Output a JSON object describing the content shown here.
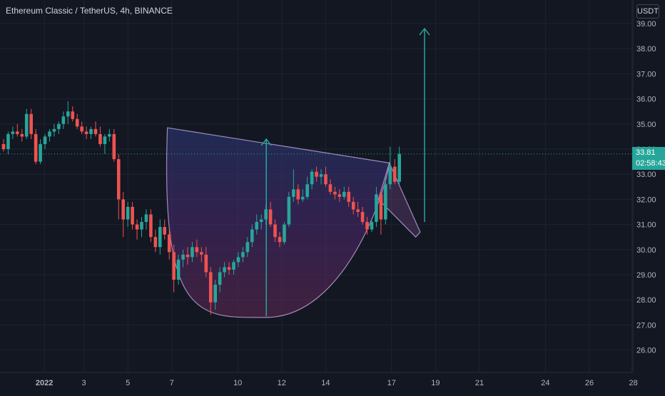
{
  "header": {
    "title": "Ethereum Classic / TetherUS, 4h, BINANCE",
    "currency": "USDT"
  },
  "price_tag": {
    "price": "33.81",
    "countdown": "02:58:43"
  },
  "chart_data": {
    "type": "candlestick",
    "y_ticks": [
      "39.00",
      "38.00",
      "37.00",
      "36.00",
      "35.00",
      "34.00",
      "33.00",
      "32.00",
      "31.00",
      "30.00",
      "29.00",
      "28.00",
      "27.00",
      "26.00"
    ],
    "x_ticks": [
      {
        "label": "2022",
        "x": 0.2
      },
      {
        "label": "3",
        "x": 2
      },
      {
        "label": "5",
        "x": 4
      },
      {
        "label": "7",
        "x": 6
      },
      {
        "label": "10",
        "x": 9
      },
      {
        "label": "12",
        "x": 11
      },
      {
        "label": "14",
        "x": 13
      },
      {
        "label": "17",
        "x": 16
      },
      {
        "label": "19",
        "x": 18
      },
      {
        "label": "21",
        "x": 20
      },
      {
        "label": "24",
        "x": 23
      },
      {
        "label": "26",
        "x": 25
      },
      {
        "label": "28",
        "x": 27
      }
    ],
    "ylim": [
      25.5,
      39.4
    ],
    "current_price": 33.81,
    "colors": {
      "up": "#26a69a",
      "down": "#ef5350",
      "background": "#131722",
      "grid": "#1f2331",
      "pattern": "#c2a6e0"
    },
    "candles": [
      [
        34.2,
        34.4,
        33.9,
        34.0
      ],
      [
        34.0,
        34.7,
        33.8,
        34.6
      ],
      [
        34.6,
        34.9,
        34.4,
        34.7
      ],
      [
        34.7,
        35.0,
        34.5,
        34.6
      ],
      [
        34.6,
        34.8,
        34.3,
        34.5
      ],
      [
        34.5,
        35.6,
        34.4,
        35.4
      ],
      [
        35.4,
        35.6,
        34.4,
        34.6
      ],
      [
        34.6,
        34.8,
        33.4,
        33.5
      ],
      [
        33.5,
        34.4,
        33.4,
        34.2
      ],
      [
        34.2,
        34.6,
        34.0,
        34.5
      ],
      [
        34.5,
        34.8,
        34.3,
        34.7
      ],
      [
        34.7,
        35.0,
        34.5,
        34.8
      ],
      [
        34.8,
        35.1,
        34.6,
        35.0
      ],
      [
        35.0,
        35.5,
        34.8,
        35.3
      ],
      [
        35.3,
        35.9,
        35.0,
        35.5
      ],
      [
        35.5,
        35.7,
        35.1,
        35.2
      ],
      [
        35.2,
        35.4,
        34.8,
        34.9
      ],
      [
        34.9,
        35.1,
        34.6,
        34.7
      ],
      [
        34.7,
        34.9,
        34.4,
        34.6
      ],
      [
        34.6,
        34.9,
        34.4,
        34.8
      ],
      [
        34.8,
        35.1,
        34.5,
        34.6
      ],
      [
        34.6,
        34.9,
        34.1,
        34.2
      ],
      [
        34.2,
        34.6,
        33.8,
        34.5
      ],
      [
        34.5,
        34.8,
        34.3,
        34.6
      ],
      [
        34.6,
        34.8,
        33.5,
        33.6
      ],
      [
        33.6,
        33.8,
        31.2,
        32.0
      ],
      [
        32.0,
        32.3,
        30.5,
        31.2
      ],
      [
        31.2,
        31.9,
        30.9,
        31.7
      ],
      [
        31.7,
        31.9,
        30.8,
        31.0
      ],
      [
        31.0,
        31.2,
        30.4,
        30.8
      ],
      [
        30.8,
        31.3,
        30.5,
        31.1
      ],
      [
        31.1,
        31.6,
        30.8,
        31.4
      ],
      [
        31.4,
        31.6,
        30.3,
        30.5
      ],
      [
        30.5,
        30.8,
        29.9,
        30.1
      ],
      [
        30.1,
        31.2,
        29.8,
        30.9
      ],
      [
        30.9,
        31.2,
        30.4,
        30.6
      ],
      [
        30.6,
        30.8,
        29.6,
        29.9
      ],
      [
        29.9,
        30.2,
        28.3,
        28.8
      ],
      [
        28.8,
        29.8,
        28.6,
        29.6
      ],
      [
        29.6,
        30.0,
        29.3,
        29.8
      ],
      [
        29.8,
        30.1,
        29.4,
        29.7
      ],
      [
        29.7,
        30.3,
        29.5,
        30.1
      ],
      [
        30.1,
        30.4,
        29.7,
        29.9
      ],
      [
        29.9,
        30.1,
        29.5,
        29.8
      ],
      [
        29.8,
        30.1,
        28.9,
        29.1
      ],
      [
        29.1,
        29.3,
        27.4,
        27.9
      ],
      [
        27.9,
        28.8,
        27.6,
        28.6
      ],
      [
        28.6,
        29.3,
        28.3,
        29.1
      ],
      [
        29.1,
        29.5,
        28.9,
        29.3
      ],
      [
        29.3,
        29.5,
        29.0,
        29.2
      ],
      [
        29.2,
        29.6,
        29.0,
        29.5
      ],
      [
        29.5,
        29.9,
        29.3,
        29.7
      ],
      [
        29.7,
        30.1,
        29.5,
        29.9
      ],
      [
        29.9,
        30.5,
        29.7,
        30.3
      ],
      [
        30.3,
        31.0,
        30.1,
        30.8
      ],
      [
        30.8,
        31.4,
        30.6,
        31.1
      ],
      [
        31.1,
        31.4,
        30.8,
        31.2
      ],
      [
        31.2,
        31.8,
        31.0,
        31.6
      ],
      [
        31.6,
        31.9,
        30.9,
        31.0
      ],
      [
        31.0,
        31.2,
        30.3,
        30.5
      ],
      [
        30.5,
        30.7,
        30.1,
        30.3
      ],
      [
        30.3,
        31.1,
        30.2,
        31.0
      ],
      [
        31.0,
        32.3,
        30.9,
        32.1
      ],
      [
        32.1,
        33.2,
        31.9,
        32.4
      ],
      [
        32.4,
        32.6,
        31.8,
        32.0
      ],
      [
        32.0,
        32.4,
        31.9,
        32.1
      ],
      [
        32.1,
        32.9,
        32.0,
        32.6
      ],
      [
        32.6,
        33.2,
        32.4,
        33.1
      ],
      [
        33.1,
        33.3,
        32.7,
        32.9
      ],
      [
        32.9,
        33.2,
        32.6,
        33.0
      ],
      [
        33.0,
        33.3,
        32.5,
        32.6
      ],
      [
        32.6,
        32.8,
        32.2,
        32.3
      ],
      [
        32.3,
        32.5,
        32.0,
        32.2
      ],
      [
        32.2,
        32.4,
        31.9,
        32.1
      ],
      [
        32.1,
        32.5,
        32.0,
        32.3
      ],
      [
        32.3,
        32.5,
        31.7,
        31.9
      ],
      [
        31.9,
        32.1,
        31.4,
        31.6
      ],
      [
        31.6,
        31.9,
        31.3,
        31.5
      ],
      [
        31.5,
        31.7,
        31.0,
        31.1
      ],
      [
        31.1,
        31.3,
        30.6,
        30.8
      ],
      [
        30.8,
        31.2,
        30.7,
        31.1
      ],
      [
        31.1,
        32.5,
        30.9,
        32.2
      ],
      [
        32.2,
        32.4,
        30.6,
        31.2
      ],
      [
        31.2,
        32.9,
        31.0,
        32.6
      ],
      [
        32.6,
        34.1,
        32.4,
        33.3
      ],
      [
        33.3,
        33.6,
        32.6,
        32.7
      ],
      [
        32.7,
        34.1,
        32.6,
        33.81
      ]
    ],
    "cup_pattern": {
      "rim_left": [
        5.8,
        34.85
      ],
      "rim_right": [
        15.9,
        33.45
      ],
      "bottom": [
        10.3,
        27.3
      ]
    },
    "flag_pattern": [
      [
        15.9,
        33.45
      ],
      [
        17.3,
        30.7
      ],
      [
        15.4,
        32.0
      ],
      [
        17.1,
        30.5
      ]
    ],
    "target_arrows": [
      {
        "x": 10.3,
        "from": 27.35,
        "to": 34.4
      },
      {
        "x": 17.5,
        "from": 31.1,
        "to": 38.8
      }
    ]
  }
}
